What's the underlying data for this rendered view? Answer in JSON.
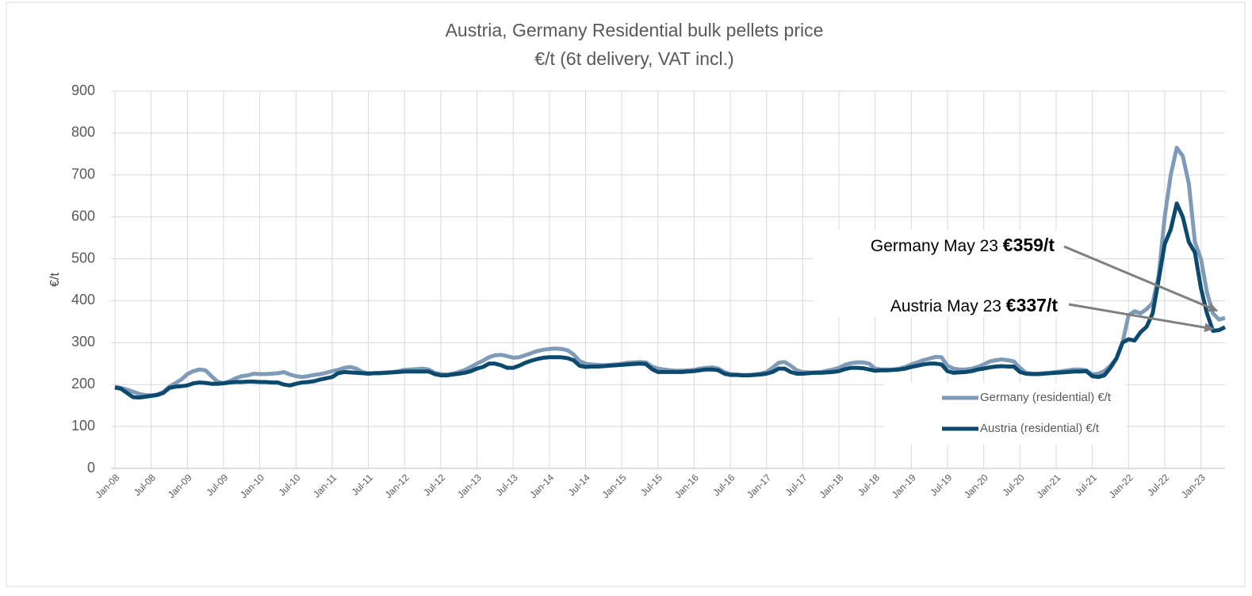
{
  "chart_data": {
    "type": "line",
    "title": "Austria, Germany Residential bulk pellets price",
    "subtitle": "€/t (6t delivery, VAT incl.)",
    "y_label": "€/t",
    "ylim": [
      0,
      900
    ],
    "yticks": [
      0,
      100,
      200,
      300,
      400,
      500,
      600,
      700,
      800,
      900
    ],
    "grid": true,
    "legend": "lower right",
    "categories": [
      "Jan-08",
      null,
      null,
      null,
      null,
      null,
      "Jul-08",
      null,
      null,
      null,
      null,
      null,
      "Jan-09",
      null,
      null,
      null,
      null,
      null,
      "Jul-09",
      null,
      null,
      null,
      null,
      null,
      "Jan-10",
      null,
      null,
      null,
      null,
      null,
      "Jul-10",
      null,
      null,
      null,
      null,
      null,
      "Jan-11",
      null,
      null,
      null,
      null,
      null,
      "Jul-11",
      null,
      null,
      null,
      null,
      null,
      "Jan-12",
      null,
      null,
      null,
      null,
      null,
      "Jul-12",
      null,
      null,
      null,
      null,
      null,
      "Jan-13",
      null,
      null,
      null,
      null,
      null,
      "Jul-13",
      null,
      null,
      null,
      null,
      null,
      "Jan-14",
      null,
      null,
      null,
      null,
      null,
      "Jul-14",
      null,
      null,
      null,
      null,
      null,
      "Jan-15",
      null,
      null,
      null,
      null,
      null,
      "Jul-15",
      null,
      null,
      null,
      null,
      null,
      "Jan-16",
      null,
      null,
      null,
      null,
      null,
      "Jul-16",
      null,
      null,
      null,
      null,
      null,
      "Jan-17",
      null,
      null,
      null,
      null,
      null,
      "Jul-17",
      null,
      null,
      null,
      null,
      null,
      "Jan-18",
      null,
      null,
      null,
      null,
      null,
      "Jul-18",
      null,
      null,
      null,
      null,
      null,
      "Jan-19",
      null,
      null,
      null,
      null,
      null,
      "Jul-19",
      null,
      null,
      null,
      null,
      null,
      "Jan-20",
      null,
      null,
      null,
      null,
      null,
      "Jul-20",
      null,
      null,
      null,
      null,
      null,
      "Jan-21",
      null,
      null,
      null,
      null,
      null,
      "Jul-21",
      null,
      null,
      null,
      null,
      null,
      "Jan-22",
      null,
      null,
      null,
      null,
      null,
      "Jul-22",
      null,
      null,
      null,
      null,
      null,
      "Jan-23",
      null,
      null,
      null,
      null
    ],
    "series": [
      {
        "name": "Germany (residential) €/t",
        "color": "#7f9bb8",
        "values": [
          195,
          192,
          188,
          183,
          178,
          175,
          174,
          176,
          182,
          195,
          203,
          212,
          225,
          232,
          236,
          234,
          220,
          207,
          203,
          208,
          215,
          220,
          222,
          226,
          225,
          225,
          226,
          227,
          230,
          224,
          220,
          218,
          220,
          223,
          225,
          228,
          232,
          235,
          240,
          242,
          238,
          230,
          227,
          227,
          228,
          229,
          230,
          232,
          235,
          236,
          237,
          238,
          236,
          228,
          225,
          224,
          226,
          230,
          235,
          242,
          250,
          257,
          265,
          270,
          271,
          268,
          264,
          265,
          270,
          275,
          280,
          283,
          285,
          286,
          285,
          282,
          272,
          256,
          250,
          248,
          247,
          246,
          247,
          248,
          250,
          252,
          253,
          254,
          253,
          243,
          238,
          236,
          234,
          233,
          233,
          234,
          235,
          238,
          240,
          241,
          238,
          230,
          225,
          224,
          223,
          223,
          224,
          226,
          230,
          240,
          252,
          254,
          245,
          234,
          230,
          229,
          229,
          230,
          233,
          236,
          240,
          247,
          251,
          253,
          253,
          250,
          238,
          236,
          236,
          236,
          238,
          242,
          248,
          253,
          258,
          262,
          266,
          265,
          245,
          238,
          236,
          236,
          238,
          242,
          248,
          255,
          258,
          260,
          258,
          255,
          240,
          228,
          226,
          226,
          227,
          228,
          230,
          232,
          234,
          236,
          236,
          234,
          224,
          226,
          232,
          245,
          262,
          300,
          365,
          375,
          370,
          380,
          395,
          460,
          600,
          700,
          765,
          745,
          680,
          540,
          500,
          420,
          370,
          355,
          359
        ]
      },
      {
        "name": "Austria (residential) €/t",
        "color": "#0b4a6e",
        "values": [
          193,
          190,
          180,
          170,
          169,
          171,
          173,
          175,
          180,
          192,
          195,
          196,
          198,
          203,
          205,
          204,
          202,
          202,
          203,
          205,
          206,
          206,
          207,
          207,
          206,
          206,
          205,
          205,
          200,
          198,
          202,
          205,
          206,
          208,
          212,
          215,
          218,
          227,
          230,
          229,
          228,
          227,
          226,
          227,
          227,
          228,
          229,
          230,
          231,
          231,
          231,
          231,
          231,
          225,
          222,
          222,
          224,
          226,
          228,
          232,
          238,
          242,
          250,
          250,
          246,
          240,
          240,
          245,
          252,
          257,
          261,
          264,
          265,
          265,
          265,
          263,
          258,
          245,
          242,
          243,
          243,
          244,
          245,
          246,
          247,
          248,
          249,
          250,
          249,
          237,
          230,
          230,
          230,
          230,
          230,
          231,
          232,
          234,
          236,
          236,
          234,
          226,
          223,
          223,
          222,
          222,
          223,
          224,
          226,
          230,
          238,
          238,
          230,
          226,
          226,
          227,
          228,
          228,
          229,
          230,
          232,
          237,
          240,
          240,
          239,
          236,
          233,
          234,
          234,
          235,
          236,
          238,
          242,
          245,
          248,
          250,
          250,
          248,
          232,
          228,
          229,
          230,
          232,
          236,
          238,
          241,
          243,
          244,
          243,
          243,
          230,
          226,
          225,
          225,
          226,
          227,
          228,
          229,
          230,
          231,
          231,
          232,
          220,
          218,
          222,
          240,
          262,
          300,
          308,
          305,
          325,
          338,
          370,
          450,
          535,
          570,
          632,
          600,
          540,
          515,
          430,
          370,
          328,
          330,
          337
        ]
      }
    ],
    "annotations": [
      {
        "text": "Germany May 23",
        "value": "€359/t"
      },
      {
        "text": "Austria May 23",
        "value": "€337/t"
      }
    ]
  }
}
